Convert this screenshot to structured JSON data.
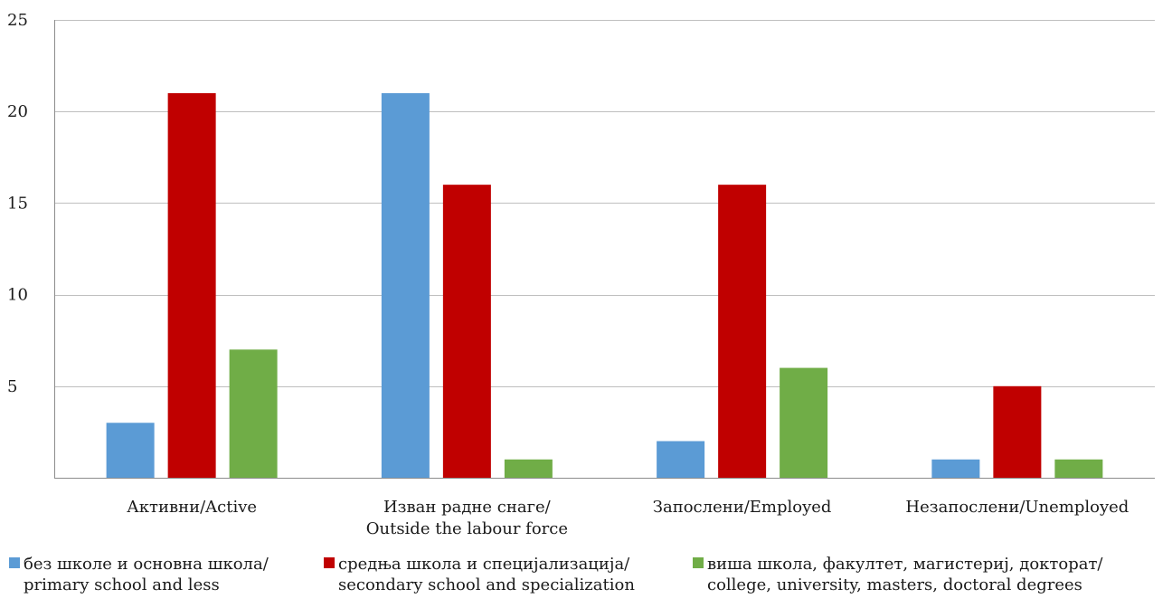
{
  "chart_data": {
    "type": "bar",
    "categories": [
      [
        "Активни/Active"
      ],
      [
        "Изван радне снаге/",
        "Outside the labour force"
      ],
      [
        "Запослени/Employed"
      ],
      [
        "Незапослени/Unemployed"
      ]
    ],
    "series": [
      {
        "name": [
          "без школе и основна школа/",
          "primary school and less"
        ],
        "color": "#5b9bd5",
        "values": [
          3,
          21,
          2,
          1
        ]
      },
      {
        "name": [
          "средња школа и специјализација/",
          "secondary school and specialization"
        ],
        "color": "#c00000",
        "values": [
          21,
          16,
          16,
          5
        ]
      },
      {
        "name": [
          "виша школа, факултет, магистериј, докторат/",
          "college, university, masters, doctoral degrees"
        ],
        "color": "#70ad47",
        "values": [
          7,
          1,
          6,
          1
        ]
      }
    ],
    "ylim": [
      0,
      25
    ],
    "y_ticks": [
      5,
      10,
      15,
      20,
      25
    ],
    "grid": true,
    "legend_position": "bottom"
  }
}
